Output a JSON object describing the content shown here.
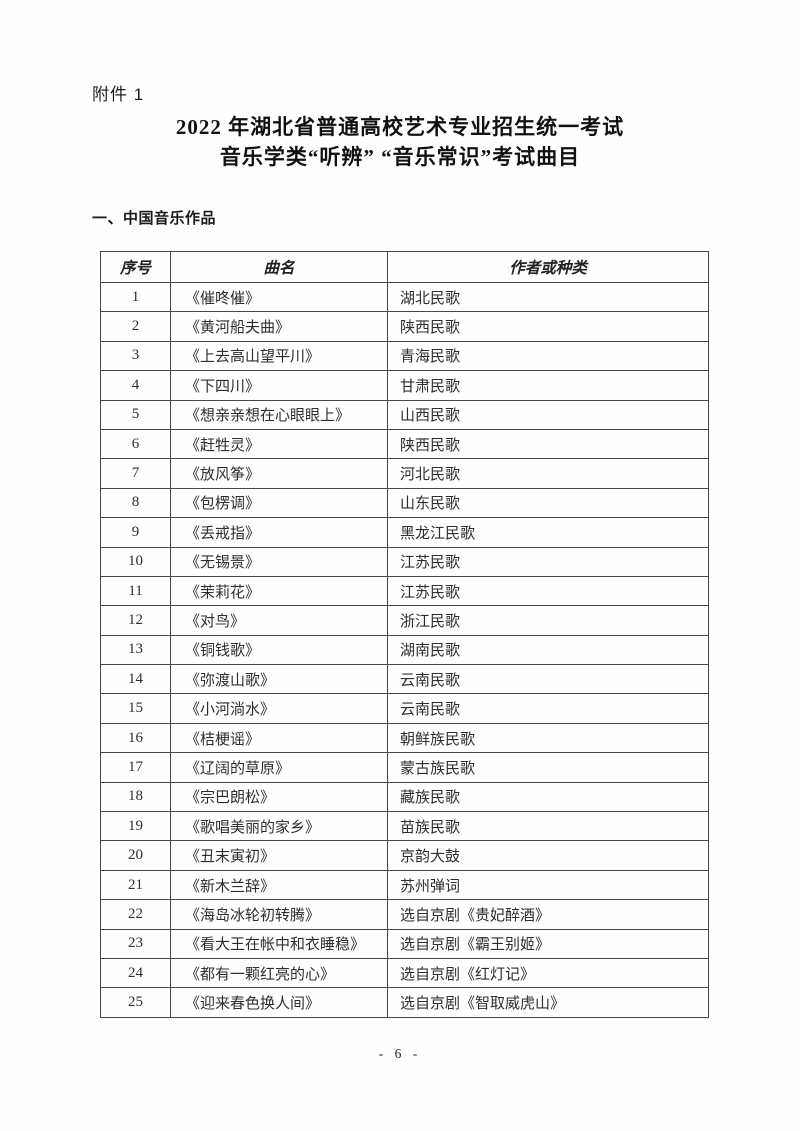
{
  "page": {
    "attachment_label": "附件 1",
    "title_line1": "2022 年湖北省普通高校艺术专业招生统一考试",
    "title_line2": "音乐学类“听辨” “音乐常识”考试曲目",
    "section_heading": "一、中国音乐作品",
    "page_number": "- 6 -"
  },
  "table": {
    "headers": [
      "序号",
      "曲名",
      "作者或种类"
    ],
    "rows": [
      [
        "1",
        "《催咚催》",
        "湖北民歌"
      ],
      [
        "2",
        "《黄河船夫曲》",
        "陕西民歌"
      ],
      [
        "3",
        "《上去高山望平川》",
        "青海民歌"
      ],
      [
        "4",
        "《下四川》",
        "甘肃民歌"
      ],
      [
        "5",
        "《想亲亲想在心眼眼上》",
        "山西民歌"
      ],
      [
        "6",
        "《赶牲灵》",
        "陕西民歌"
      ],
      [
        "7",
        "《放风筝》",
        "河北民歌"
      ],
      [
        "8",
        "《包楞调》",
        "山东民歌"
      ],
      [
        "9",
        "《丢戒指》",
        "黑龙江民歌"
      ],
      [
        "10",
        "《无锡景》",
        "江苏民歌"
      ],
      [
        "11",
        "《茉莉花》",
        "江苏民歌"
      ],
      [
        "12",
        "《对鸟》",
        "浙江民歌"
      ],
      [
        "13",
        "《铜钱歌》",
        "湖南民歌"
      ],
      [
        "14",
        "《弥渡山歌》",
        "云南民歌"
      ],
      [
        "15",
        "《小河淌水》",
        "云南民歌"
      ],
      [
        "16",
        "《桔梗谣》",
        "朝鲜族民歌"
      ],
      [
        "17",
        "《辽阔的草原》",
        "蒙古族民歌"
      ],
      [
        "18",
        "《宗巴朗松》",
        "藏族民歌"
      ],
      [
        "19",
        "《歌唱美丽的家乡》",
        "苗族民歌"
      ],
      [
        "20",
        "《丑末寅初》",
        "京韵大鼓"
      ],
      [
        "21",
        "《新木兰辞》",
        "苏州弹词"
      ],
      [
        "22",
        "《海岛冰轮初转腾》",
        "选自京剧《贵妃醉酒》"
      ],
      [
        "23",
        "《看大王在帐中和衣睡稳》",
        "选自京剧《霸王别姬》"
      ],
      [
        "24",
        "《都有一颗红亮的心》",
        "选自京剧《红灯记》"
      ],
      [
        "25",
        "《迎来春色换人间》",
        "选自京剧《智取威虎山》"
      ]
    ]
  }
}
